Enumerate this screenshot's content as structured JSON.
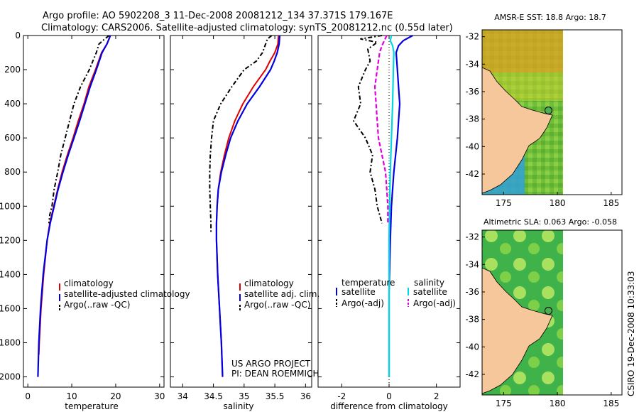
{
  "header": {
    "line1": "Argo profile: AO 5902208_3 11-Dec-2008 20081212_134 37.371S 179.167E",
    "line2": "Climatology: CARS2006. Satellite-adjusted climatology: synTS_20081212.nc (0.55d later)"
  },
  "side_stamp": "CSIRO 19-Dec-2008 10:33:03",
  "colors": {
    "climatology": "#e00000",
    "satellite": "#0000e0",
    "argo": "#000000",
    "cyan": "#00d8e0",
    "magenta": "#e000e0",
    "land": "#f5c79a"
  },
  "chart_data": [
    {
      "type": "line",
      "id": "temperature",
      "xlabel": "temperature",
      "xlim": [
        -1,
        31
      ],
      "ylim": [
        0,
        2060
      ],
      "xticks": [
        0,
        10,
        20,
        30
      ],
      "yticks": [
        0,
        200,
        400,
        600,
        800,
        1000,
        1200,
        1400,
        1600,
        1800,
        2000
      ],
      "series": [
        {
          "name": "climatology",
          "style": "climatology",
          "depth": [
            0,
            50,
            100,
            200,
            300,
            400,
            500,
            600,
            700,
            800,
            900,
            1000,
            1100,
            1200,
            1400,
            1600,
            1800,
            1870
          ],
          "values": [
            18.8,
            18.0,
            16.8,
            15.4,
            13.9,
            12.8,
            11.5,
            10.3,
            9.0,
            7.8,
            6.8,
            5.9,
            5.0,
            4.4,
            3.6,
            3.0,
            2.6,
            2.5
          ]
        },
        {
          "name": "satellite-adjusted climatology",
          "style": "satellite",
          "depth": [
            0,
            50,
            100,
            200,
            300,
            400,
            500,
            600,
            700,
            800,
            900,
            1000,
            1100,
            1200,
            1400,
            1600,
            1800,
            2000
          ],
          "values": [
            18.8,
            18.0,
            16.9,
            15.6,
            14.2,
            13.0,
            11.8,
            10.5,
            9.2,
            8.0,
            6.9,
            6.0,
            5.1,
            4.4,
            3.5,
            2.9,
            2.5,
            2.3
          ]
        },
        {
          "name": "Argo(..raw -QC)",
          "style": "argo",
          "depth": [
            0,
            20,
            50,
            100,
            200,
            300,
            400,
            500,
            600,
            700,
            800,
            900,
            1000,
            1050,
            1100
          ],
          "values": [
            18.5,
            17.5,
            16.2,
            15.6,
            14.0,
            12.0,
            10.5,
            9.5,
            8.5,
            7.5,
            6.8,
            6.0,
            5.5,
            5.0,
            4.8
          ]
        }
      ],
      "legend": {
        "placement": "center-left",
        "entries": [
          "climatology",
          "satellite-adjusted climatology",
          "Argo(..raw -QC)"
        ]
      }
    },
    {
      "type": "line",
      "id": "salinity",
      "xlabel": "salinity",
      "xlim": [
        33.8,
        36.1
      ],
      "ylim": [
        0,
        2060
      ],
      "xticks": [
        34,
        34.5,
        35,
        35.5,
        36
      ],
      "xticklabels": [
        "34",
        "34.5",
        "35",
        "35.5",
        "36"
      ],
      "series": [
        {
          "name": "climatology",
          "style": "climatology",
          "depth": [
            0,
            50,
            100,
            150,
            200,
            300,
            400,
            500,
            600,
            700,
            800,
            900,
            1000,
            1100,
            1200,
            1400,
            1600,
            1800,
            2000
          ],
          "values": [
            35.56,
            35.55,
            35.5,
            35.42,
            35.35,
            35.15,
            34.98,
            34.85,
            34.75,
            34.68,
            34.62,
            34.58,
            34.56,
            34.55,
            34.55,
            34.57,
            34.6,
            34.63,
            34.65
          ]
        },
        {
          "name": "satellite adj. clim.",
          "style": "satellite",
          "depth": [
            0,
            50,
            100,
            150,
            200,
            300,
            400,
            500,
            600,
            700,
            800,
            900,
            1000,
            1100,
            1200,
            1400,
            1600,
            1800,
            2000
          ],
          "values": [
            35.58,
            35.57,
            35.54,
            35.49,
            35.43,
            35.25,
            35.05,
            34.9,
            34.78,
            34.7,
            34.63,
            34.58,
            34.56,
            34.55,
            34.55,
            34.57,
            34.6,
            34.63,
            34.65
          ]
        },
        {
          "name": "Argo(..raw -QC)",
          "style": "argo",
          "depth": [
            0,
            20,
            50,
            100,
            150,
            200,
            300,
            400,
            500,
            600,
            700,
            800,
            900,
            1000,
            1100,
            1150
          ],
          "values": [
            35.45,
            35.38,
            35.35,
            35.3,
            35.2,
            35.0,
            34.8,
            34.62,
            34.5,
            34.47,
            34.45,
            34.44,
            34.44,
            34.45,
            34.46,
            34.46
          ]
        }
      ],
      "legend": {
        "placement": "center-right",
        "entries": [
          "climatology",
          "satellite adj. clim.",
          "Argo(..raw -QC)"
        ]
      },
      "annotation": [
        "US ARGO PROJECT",
        "PI: DEAN ROEMMICH"
      ]
    },
    {
      "type": "line",
      "id": "difference",
      "xlabel": "difference from climatology",
      "xlim": [
        -3,
        3
      ],
      "ylim": [
        0,
        2060
      ],
      "xticks": [
        -2,
        0,
        2
      ],
      "series": [
        {
          "name": "satellite",
          "group": "temperature",
          "style": "satellite",
          "depth": [
            0,
            30,
            60,
            100,
            200,
            300,
            400,
            600,
            800,
            1000,
            1200,
            1500,
            1800,
            2000
          ],
          "values": [
            1.0,
            0.6,
            0.4,
            0.3,
            0.35,
            0.4,
            0.45,
            0.35,
            0.2,
            0.1,
            0.05,
            0.0,
            0.0,
            0.0
          ]
        },
        {
          "name": "Argo(-adj)",
          "group": "temperature",
          "style": "argo",
          "depth": [
            0,
            20,
            40,
            80,
            150,
            200,
            300,
            400,
            500,
            600,
            700,
            800,
            900,
            1000,
            1100
          ],
          "values": [
            -0.3,
            -1.2,
            -0.5,
            -0.9,
            -0.8,
            -1.0,
            -1.3,
            -1.2,
            -1.5,
            -1.0,
            -0.7,
            -0.8,
            -0.6,
            -0.5,
            -0.3
          ]
        },
        {
          "name": "satellite",
          "group": "salinity",
          "style": "cyan",
          "depth": [
            0,
            30,
            60,
            100,
            200,
            400,
            600,
            800,
            1000,
            1200,
            1500,
            2000
          ],
          "values": [
            0.1,
            0.05,
            0.15,
            0.2,
            0.18,
            0.15,
            0.1,
            0.05,
            0.02,
            0.0,
            0.0,
            0.0
          ]
        },
        {
          "name": "Argo(-adj)",
          "group": "salinity",
          "style": "magenta",
          "depth": [
            0,
            30,
            60,
            100,
            200,
            300,
            400,
            500,
            600,
            700,
            800,
            900,
            1000,
            1100
          ],
          "values": [
            -0.1,
            -0.2,
            -0.3,
            -0.4,
            -0.5,
            -0.6,
            -0.55,
            -0.5,
            -0.45,
            -0.3,
            -0.15,
            -0.1,
            -0.05,
            -0.05
          ]
        }
      ],
      "legend_groups": [
        {
          "title": "temperature",
          "entries": [
            "satellite",
            "Argo(-adj)"
          ]
        },
        {
          "title": "salinity",
          "entries": [
            "satellite",
            "Argo(-adj)"
          ]
        }
      ]
    },
    {
      "type": "heatmap",
      "id": "sst-map",
      "title": "AMSR-E SST: 18.8 Argo: 18.7",
      "xticks": [
        175,
        180,
        185
      ],
      "yticks": [
        -32,
        -34,
        -36,
        -38,
        -40,
        -42
      ],
      "xlim": [
        173,
        186
      ],
      "ylim": [
        -43.5,
        -31.5
      ],
      "marker": {
        "lon": 179.167,
        "lat": -37.371
      }
    },
    {
      "type": "heatmap",
      "id": "sla-map",
      "title": "Altimetric SLA: 0.063 Argo: -0.058",
      "xticks": [
        175,
        180,
        185
      ],
      "yticks": [
        -32,
        -34,
        -36,
        -38,
        -40,
        -42
      ],
      "xlim": [
        173,
        186
      ],
      "ylim": [
        -43.5,
        -31.5
      ],
      "marker": {
        "lon": 179.167,
        "lat": -37.371
      }
    }
  ]
}
